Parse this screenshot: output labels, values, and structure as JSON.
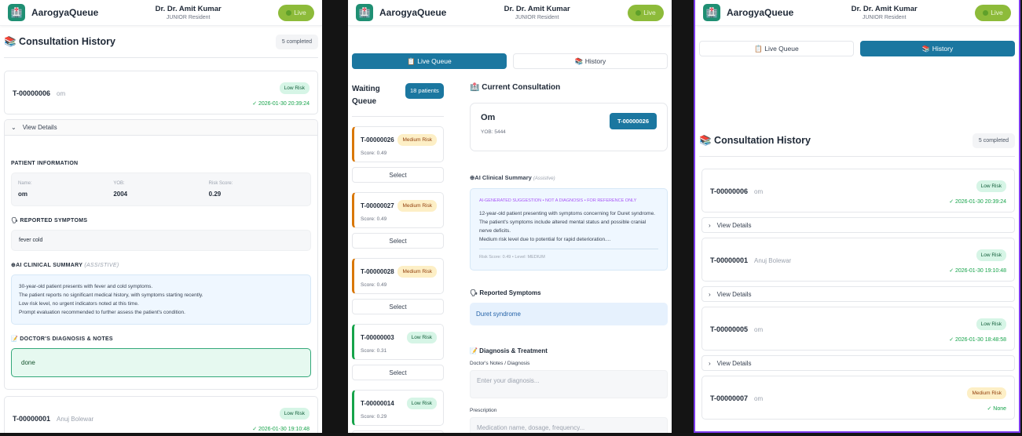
{
  "app": {
    "name": "AarogyaQueue",
    "doctor_name": "Dr. Dr. Amit Kumar",
    "doctor_role": "JUNIOR Resident",
    "live_label": "Live"
  },
  "colors": {
    "primary": "#1b77a0",
    "live": "#8dbb3a",
    "low_risk": "#d6f5e6",
    "medium_risk": "#fdefc6",
    "panel_border": "#7c3aed"
  },
  "icons": {
    "logo": "hospital-icon",
    "history": "books-icon",
    "live_queue": "clipboard-icon",
    "symptoms": "speaking-head-icon",
    "notes": "memo-icon",
    "ai": "robot-icon"
  },
  "tabs": {
    "live_queue": "📋 Live Queue",
    "history": "📚 History"
  },
  "history": {
    "title": "📚 Consultation History",
    "count": "5 completed",
    "view_details": "View Details",
    "items": [
      {
        "ticket": "T-00000006",
        "name": "om",
        "risk": "Low Risk",
        "level": "low",
        "completed": "✓ 2026-01-30 20:39:24"
      },
      {
        "ticket": "T-00000001",
        "name": "Anuj Bolewar",
        "risk": "Low Risk",
        "level": "low",
        "completed": "✓ 2026-01-30 19:10:48"
      },
      {
        "ticket": "T-00000005",
        "name": "om",
        "risk": "Low Risk",
        "level": "low",
        "completed": "✓ 2026-01-30 18:48:58"
      },
      {
        "ticket": "T-00000007",
        "name": "om",
        "risk": "Medium Risk",
        "level": "med",
        "completed": "✓ None"
      }
    ],
    "details": {
      "patient_info_title": "PATIENT INFORMATION",
      "name_label": "Name:",
      "name": "om",
      "yob_label": "YOB:",
      "yob": "2004",
      "risk_label": "Risk Score:",
      "risk_score": "0.29",
      "symptoms_title": "🗣 REPORTED SYMPTOMS",
      "symptoms": "fever cold",
      "ai_title": "⊕AI CLINICAL SUMMARY",
      "ai_tag": "(ASSISTIVE)",
      "ai_lines": [
        "30-year-old patient presents with fever and cold symptoms.",
        "The patient reports no significant medical history, with symptoms starting recently.",
        "Low risk level, no urgent indicators noted at this time.",
        "Prompt evaluation recommended to further assess the patient's condition."
      ],
      "notes_title": "📝 DOCTOR'S DIAGNOSIS & NOTES",
      "notes": "done"
    }
  },
  "queue": {
    "title": "Waiting Queue",
    "count": "18 patients",
    "select_label": "Select",
    "items": [
      {
        "ticket": "T-00000026",
        "risk": "Medium Risk",
        "level": "med",
        "score": "Score: 0.49"
      },
      {
        "ticket": "T-00000027",
        "risk": "Medium Risk",
        "level": "med",
        "score": "Score: 0.49"
      },
      {
        "ticket": "T-00000028",
        "risk": "Medium Risk",
        "level": "med",
        "score": "Score: 0.49"
      },
      {
        "ticket": "T-00000003",
        "risk": "Low Risk",
        "level": "low",
        "score": "Score: 0.31"
      },
      {
        "ticket": "T-00000014",
        "risk": "Low Risk",
        "level": "low",
        "score": "Score: 0.29"
      }
    ]
  },
  "consultation": {
    "title": "🏥 Current Consultation",
    "patient_name": "Om",
    "yob": "YOB: 5444",
    "ticket": "T-00000026",
    "ai_title": "⊕AI Clinical Summary",
    "ai_tag": "(Assistive)",
    "ai_disclaimer": "AI-GENERATED SUGGESTION • NOT A DIAGNOSIS • FOR REFERENCE ONLY",
    "ai_lines": [
      "12-year-old patient presenting with symptoms concerning for Duret syndrome.",
      "The patient's symptoms include altered mental status and possible cranial nerve deficits.",
      "Medium risk level due to potential for rapid deterioration...."
    ],
    "ai_footer": "Risk Score: 0.49 • Level: MEDIUM",
    "symptoms_title": "🗣 Reported Symptoms",
    "symptoms": "Duret syndrome",
    "diag_title": "📝 Diagnosis & Treatment",
    "notes_label": "Doctor's Notes / Diagnosis",
    "notes_placeholder": "Enter your diagnosis...",
    "rx_label": "Prescription",
    "rx_placeholder": "Medication name, dosage, frequency..."
  }
}
